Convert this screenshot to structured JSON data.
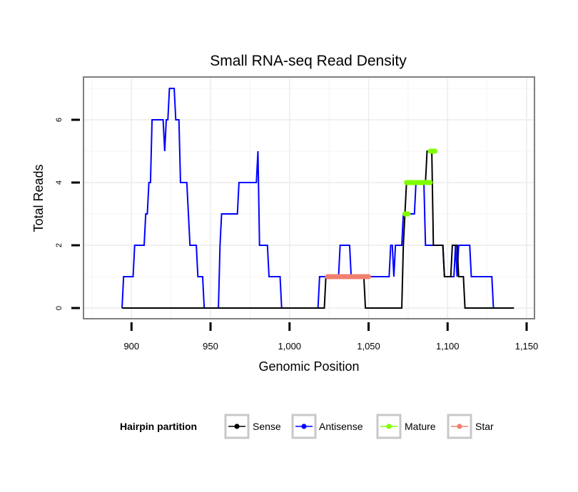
{
  "chart_data": {
    "type": "line",
    "title": "Small RNA-seq Read Density",
    "xlabel": "Genomic Position",
    "ylabel": "Total Reads",
    "xlim": [
      880,
      1150
    ],
    "ylim": [
      -0.3,
      7.35
    ],
    "x_ticks": [
      900,
      950,
      1000,
      1050,
      1100,
      1150
    ],
    "x_tick_labels": [
      "900",
      "950",
      "1,000",
      "1,050",
      "1,100",
      "1,150"
    ],
    "y_ticks": [
      0,
      2,
      4,
      6
    ],
    "y_tick_labels": [
      "0",
      "2",
      "4",
      "6"
    ],
    "grid": true,
    "legend": {
      "title": "Hairpin partition",
      "position": "bottom",
      "entries": [
        {
          "name": "Sense",
          "color": "#000000"
        },
        {
          "name": "Antisense",
          "color": "#0000ff"
        },
        {
          "name": "Mature",
          "color": "#7fff00"
        },
        {
          "name": "Star",
          "color": "#f08070"
        }
      ]
    },
    "series": [
      {
        "name": "Antisense",
        "color": "#0000ff",
        "points": [
          [
            894,
            0
          ],
          [
            895,
            1
          ],
          [
            901,
            1
          ],
          [
            902,
            2
          ],
          [
            908,
            2
          ],
          [
            909,
            3
          ],
          [
            910,
            3
          ],
          [
            911,
            4
          ],
          [
            912,
            4
          ],
          [
            913,
            6
          ],
          [
            920,
            6
          ],
          [
            921,
            5
          ],
          [
            922,
            6
          ],
          [
            923,
            6
          ],
          [
            924,
            7
          ],
          [
            927,
            7
          ],
          [
            928,
            6
          ],
          [
            930,
            6
          ],
          [
            931,
            4
          ],
          [
            935,
            4
          ],
          [
            936,
            3
          ],
          [
            937,
            2
          ],
          [
            941,
            2
          ],
          [
            942,
            1
          ],
          [
            945,
            1
          ],
          [
            946,
            0
          ],
          [
            955,
            0
          ],
          [
            956,
            2
          ],
          [
            957,
            3
          ],
          [
            967,
            3
          ],
          [
            968,
            4
          ],
          [
            974,
            4
          ],
          [
            975,
            4
          ],
          [
            979,
            4
          ],
          [
            980,
            5
          ],
          [
            981,
            2
          ],
          [
            986,
            2
          ],
          [
            987,
            1
          ],
          [
            994,
            1
          ],
          [
            995,
            0
          ],
          [
            1018,
            0
          ],
          [
            1019,
            1
          ],
          [
            1031,
            1
          ],
          [
            1032,
            2
          ],
          [
            1038,
            2
          ],
          [
            1039,
            1
          ],
          [
            1046,
            1
          ],
          [
            1047,
            1
          ],
          [
            1057,
            1
          ],
          [
            1058,
            1
          ],
          [
            1063,
            1
          ],
          [
            1064,
            2
          ],
          [
            1065,
            2
          ],
          [
            1066,
            1
          ],
          [
            1067,
            2
          ],
          [
            1071,
            2
          ],
          [
            1072,
            3
          ],
          [
            1076,
            3
          ],
          [
            1077,
            3
          ],
          [
            1079,
            3
          ],
          [
            1080,
            4
          ],
          [
            1084,
            4
          ],
          [
            1085,
            4
          ],
          [
            1086,
            2
          ],
          [
            1097,
            2
          ],
          [
            1098,
            1
          ],
          [
            1104,
            1
          ],
          [
            1105,
            2
          ],
          [
            1106,
            1
          ],
          [
            1107,
            2
          ],
          [
            1114,
            2
          ],
          [
            1115,
            1
          ],
          [
            1128,
            1
          ],
          [
            1129,
            0
          ]
        ]
      },
      {
        "name": "Sense",
        "color": "#000000",
        "points": [
          [
            894,
            0
          ],
          [
            1022,
            0
          ],
          [
            1023,
            1
          ],
          [
            1047,
            1
          ],
          [
            1048,
            0
          ],
          [
            1071,
            0
          ],
          [
            1072,
            2
          ],
          [
            1073,
            3
          ],
          [
            1074,
            4
          ],
          [
            1086,
            4
          ],
          [
            1087,
            5
          ],
          [
            1090,
            5
          ],
          [
            1091,
            2
          ],
          [
            1097,
            2
          ],
          [
            1098,
            1
          ],
          [
            1102,
            1
          ],
          [
            1103,
            2
          ],
          [
            1106,
            2
          ],
          [
            1107,
            1
          ],
          [
            1110,
            1
          ],
          [
            1111,
            0
          ],
          [
            1142,
            0
          ]
        ]
      },
      {
        "name": "Mature",
        "color": "#7fff00",
        "segments": [
          {
            "from": [
              1073,
              3
            ],
            "to": [
              1075,
              3
            ]
          },
          {
            "from": [
              1074,
              4
            ],
            "to": [
              1089,
              4
            ]
          },
          {
            "from": [
              1089,
              5
            ],
            "to": [
              1092,
              5
            ]
          }
        ]
      },
      {
        "name": "Star",
        "color": "#f08070",
        "segments": [
          {
            "from": [
              1024,
              1
            ],
            "to": [
              1050,
              1
            ]
          }
        ]
      }
    ]
  }
}
